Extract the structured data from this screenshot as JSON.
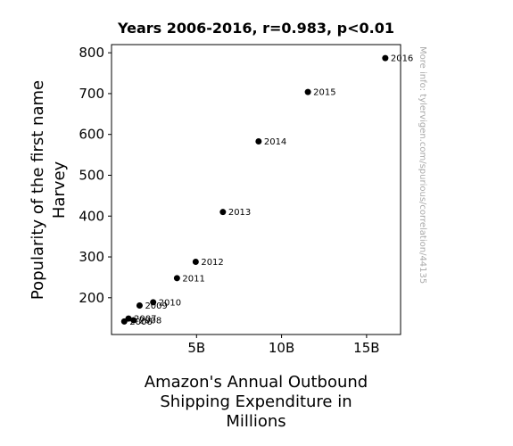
{
  "chart_data": {
    "type": "scatter",
    "title": "Years 2006-2016, r=0.983, p<0.01",
    "xlabel_lines": [
      "Amazon's Annual Outbound",
      "Shipping Expenditure in",
      "Millions"
    ],
    "ylabel_lines": [
      "Popularity of the first name",
      "Harvey"
    ],
    "xlim": [
      0,
      17000
    ],
    "ylim": [
      110,
      820
    ],
    "xticks": [
      {
        "value": 5000,
        "label": "5B"
      },
      {
        "value": 10000,
        "label": "10B"
      },
      {
        "value": 15000,
        "label": "15B"
      }
    ],
    "yticks": [
      {
        "value": 200,
        "label": "200"
      },
      {
        "value": 300,
        "label": "300"
      },
      {
        "value": 400,
        "label": "400"
      },
      {
        "value": 500,
        "label": "500"
      },
      {
        "value": 600,
        "label": "600"
      },
      {
        "value": 700,
        "label": "700"
      },
      {
        "value": 800,
        "label": "800"
      }
    ],
    "points": [
      {
        "label": "2006",
        "x": 750,
        "y": 142
      },
      {
        "label": "2007",
        "x": 1000,
        "y": 149
      },
      {
        "label": "2008",
        "x": 1300,
        "y": 145
      },
      {
        "label": "2009",
        "x": 1650,
        "y": 181
      },
      {
        "label": "2010",
        "x": 2450,
        "y": 189
      },
      {
        "label": "2011",
        "x": 3850,
        "y": 248
      },
      {
        "label": "2012",
        "x": 4950,
        "y": 288
      },
      {
        "label": "2013",
        "x": 6550,
        "y": 410
      },
      {
        "label": "2014",
        "x": 8650,
        "y": 583
      },
      {
        "label": "2015",
        "x": 11550,
        "y": 704
      },
      {
        "label": "2016",
        "x": 16100,
        "y": 787
      }
    ],
    "point_color": "#000000",
    "grid": false,
    "legend": "none"
  },
  "watermark": "More info: tylervigen.com/spurious/correlation/44135"
}
